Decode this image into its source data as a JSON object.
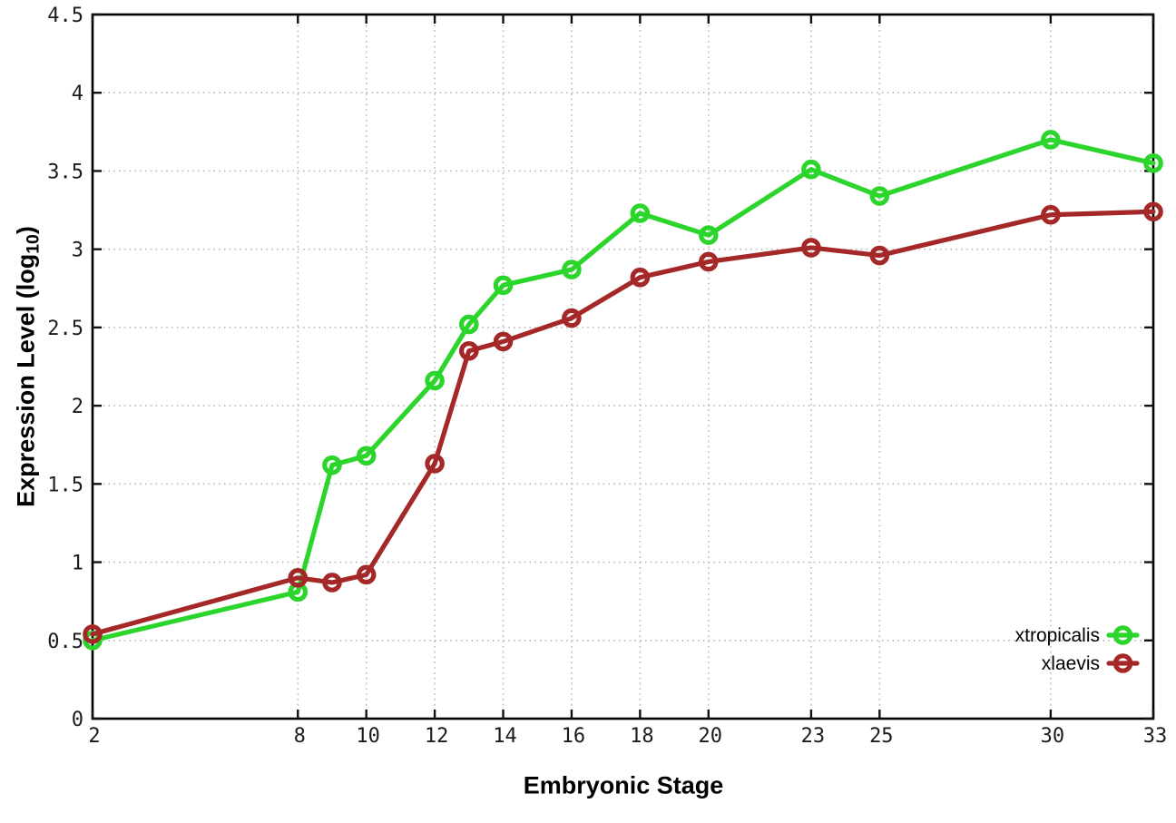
{
  "page": {
    "background": "#ffffff"
  },
  "chart_data": {
    "type": "line",
    "title": "",
    "xlabel": "Embryonic Stage",
    "ylabel": {
      "main": "Expression Level (log",
      "sub": "10",
      "end": ")"
    },
    "xlim": [
      2,
      33
    ],
    "ylim": [
      0,
      4.5
    ],
    "xticks": [
      2,
      8,
      10,
      12,
      14,
      16,
      18,
      20,
      23,
      25,
      30,
      33
    ],
    "yticks": [
      0,
      0.5,
      1,
      1.5,
      2,
      2.5,
      3,
      3.5,
      4,
      4.5
    ],
    "grid": true,
    "grid_style": "dotted",
    "grid_color": "#b9b9b9",
    "axis_color": "#000000",
    "tick_label_color": "#1c1c1c",
    "legend_position": "inside-bottom-right",
    "x": [
      2,
      8,
      9,
      10,
      12,
      13,
      14,
      16,
      18,
      20,
      23,
      25,
      30,
      33
    ],
    "series": [
      {
        "name": "xtropicalis",
        "color": "#2bd52b",
        "marker": "open-circle",
        "values": [
          0.5,
          0.81,
          1.62,
          1.68,
          2.16,
          2.52,
          2.77,
          2.87,
          3.23,
          3.09,
          3.51,
          3.34,
          3.7,
          3.55
        ]
      },
      {
        "name": "xlaevis",
        "color": "#a52828",
        "marker": "open-circle",
        "values": [
          0.54,
          0.9,
          0.87,
          0.92,
          1.63,
          2.35,
          2.41,
          2.56,
          2.82,
          2.92,
          3.01,
          2.96,
          3.22,
          3.24
        ]
      }
    ]
  }
}
